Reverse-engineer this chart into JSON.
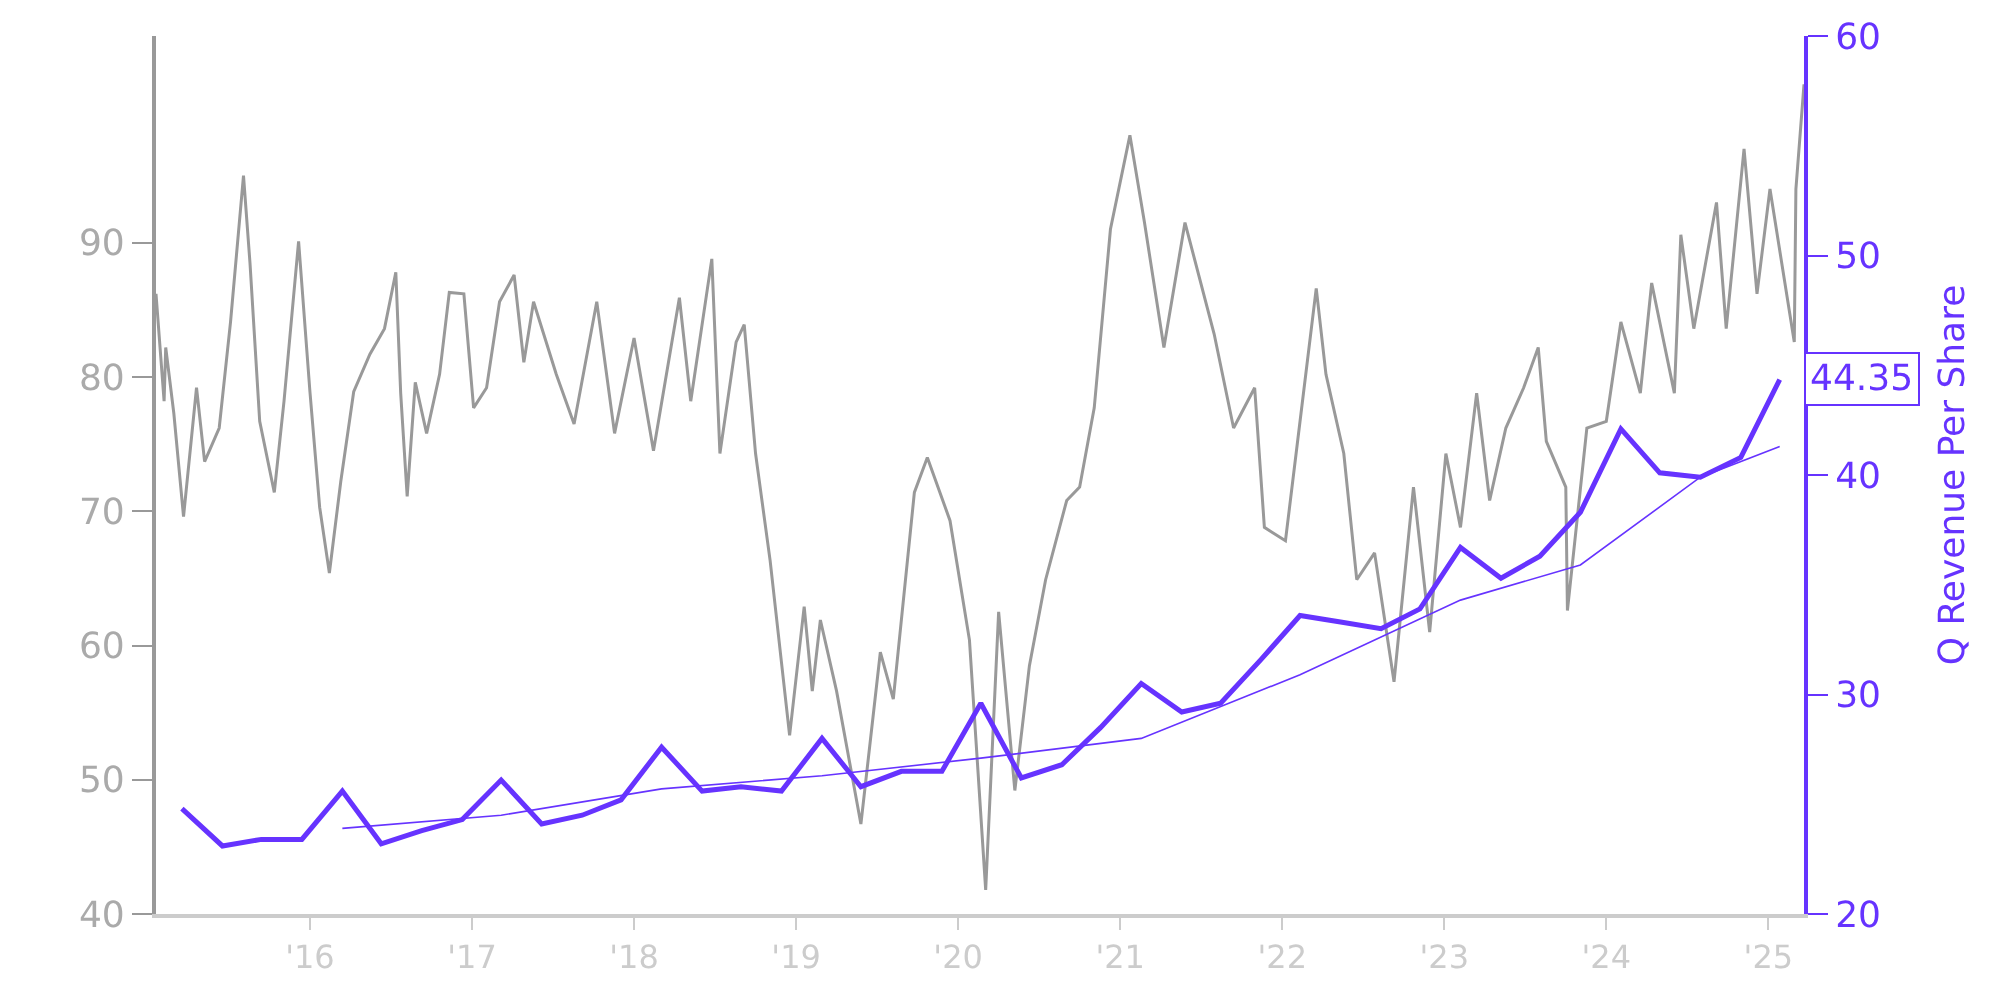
{
  "chart_data": {
    "type": "line",
    "y2label": "Q Revenue Per Share",
    "xlim": [
      2015.05,
      2025.22
    ],
    "xticks": [
      {
        "value": 2016,
        "label": "'16"
      },
      {
        "value": 2017,
        "label": "'17"
      },
      {
        "value": 2018,
        "label": "'18"
      },
      {
        "value": 2019,
        "label": "'19"
      },
      {
        "value": 2020,
        "label": "'20"
      },
      {
        "value": 2021,
        "label": "'21"
      },
      {
        "value": 2022,
        "label": "'22"
      },
      {
        "value": 2023,
        "label": "'23"
      },
      {
        "value": 2024,
        "label": "'24"
      },
      {
        "value": 2025,
        "label": "'25"
      }
    ],
    "ylim": [
      40,
      105.4
    ],
    "yticks": [
      40,
      50,
      60,
      70,
      80,
      90
    ],
    "y2lim": [
      20,
      60
    ],
    "y2ticks": [
      20,
      30,
      40,
      50,
      60
    ],
    "marker": "none",
    "series": [
      {
        "color": "#999999",
        "x": [
          2015.05,
          2015.1,
          2015.11,
          2015.16,
          2015.22,
          2015.3,
          2015.35,
          2015.44,
          2015.51,
          2015.59,
          2015.63,
          2015.69,
          2015.78,
          2015.84,
          2015.93,
          2016.0,
          2016.06,
          2016.12,
          2016.19,
          2016.27,
          2016.37,
          2016.46,
          2016.53,
          2016.56,
          2016.6,
          2016.65,
          2016.72,
          2016.8,
          2016.86,
          2016.95,
          2017.01,
          2017.09,
          2017.17,
          2017.26,
          2017.32,
          2017.38,
          2017.52,
          2017.63,
          2017.77,
          2017.88,
          2018.0,
          2018.12,
          2018.28,
          2018.35,
          2018.48,
          2018.53,
          2018.63,
          2018.68,
          2018.75,
          2018.84,
          2018.96,
          2019.05,
          2019.1,
          2019.15,
          2019.25,
          2019.4,
          2019.52,
          2019.6,
          2019.73,
          2019.81,
          2019.95,
          2020.07,
          2020.17,
          2020.25,
          2020.35,
          2020.44,
          2020.54,
          2020.67,
          2020.75,
          2020.84,
          2020.94,
          2021.06,
          2021.15,
          2021.27,
          2021.4,
          2021.58,
          2021.7,
          2021.83,
          2021.89,
          2022.02,
          2022.11,
          2022.21,
          2022.27,
          2022.38,
          2022.46,
          2022.57,
          2022.69,
          2022.81,
          2022.91,
          2023.01,
          2023.1,
          2023.2,
          2023.28,
          2023.38,
          2023.49,
          2023.58,
          2023.63,
          2023.75,
          2023.76,
          2023.88,
          2024.0,
          2024.09,
          2024.21,
          2024.28,
          2024.42,
          2024.46,
          2024.54,
          2024.68,
          2024.74,
          2024.85,
          2024.93,
          2025.01,
          2025.16,
          2025.17,
          2025.22
        ],
        "values": [
          86.2,
          78.2,
          82.2,
          77.3,
          69.6,
          79.2,
          73.7,
          76.2,
          84.1,
          95.0,
          88.5,
          76.7,
          71.4,
          78.2,
          90.1,
          78.9,
          70.3,
          65.4,
          72.2,
          78.9,
          81.7,
          83.6,
          87.8,
          78.8,
          71.1,
          79.6,
          75.8,
          80.2,
          86.3,
          86.2,
          77.7,
          79.2,
          85.6,
          87.6,
          81.1,
          85.6,
          80.2,
          76.5,
          85.6,
          75.8,
          82.9,
          74.5,
          85.9,
          78.2,
          88.8,
          74.3,
          82.6,
          83.9,
          74.3,
          66.3,
          53.3,
          62.9,
          56.6,
          61.9,
          56.6,
          46.7,
          59.5,
          56.0,
          71.4,
          74.0,
          69.3,
          60.4,
          41.8,
          62.5,
          49.2,
          58.5,
          64.9,
          70.8,
          71.8,
          77.7,
          91.0,
          98.0,
          91.5,
          82.2,
          91.5,
          83.2,
          76.2,
          79.2,
          68.8,
          67.8,
          76.7,
          86.6,
          80.2,
          74.3,
          64.9,
          66.9,
          57.3,
          71.8,
          61.0,
          74.3,
          68.8,
          78.8,
          70.8,
          76.2,
          79.2,
          82.2,
          75.2,
          71.8,
          62.6,
          76.2,
          76.7,
          84.1,
          78.8,
          87.0,
          78.8,
          90.6,
          83.6,
          93.0,
          83.6,
          97.0,
          86.2,
          94.0,
          82.6,
          94.0,
          101.8
        ]
      },
      {
        "color": "#6633ff",
        "axis": "y2",
        "x": [
          2015.21,
          2015.46,
          2015.7,
          2015.95,
          2016.2,
          2016.44,
          2016.69,
          2016.94,
          2017.18,
          2017.43,
          2017.68,
          2017.92,
          2018.17,
          2018.42,
          2018.66,
          2018.91,
          2019.16,
          2019.4,
          2019.65,
          2019.9,
          2020.14,
          2020.39,
          2020.64,
          2020.88,
          2021.13,
          2021.38,
          2021.62,
          2021.87,
          2022.11,
          2022.36,
          2022.61,
          2022.85,
          2023.1,
          2023.35,
          2023.59,
          2023.84,
          2024.09,
          2024.33,
          2024.58,
          2024.83,
          2025.07
        ],
        "values": [
          24.8,
          23.1,
          23.4,
          23.4,
          25.6,
          23.2,
          23.8,
          24.3,
          26.1,
          24.1,
          24.5,
          25.2,
          27.6,
          25.6,
          25.8,
          25.6,
          28.0,
          25.8,
          26.5,
          26.5,
          29.6,
          26.2,
          26.8,
          28.5,
          30.5,
          29.2,
          29.6,
          31.6,
          33.6,
          33.3,
          33.0,
          33.9,
          36.7,
          35.3,
          36.3,
          38.3,
          42.1,
          40.1,
          39.9,
          40.8,
          44.35
        ],
        "value_labels": [
          null,
          null,
          null,
          null,
          null,
          null,
          null,
          null,
          null,
          null,
          null,
          null,
          null,
          null,
          null,
          null,
          null,
          null,
          null,
          null,
          null,
          null,
          null,
          null,
          null,
          null,
          null,
          null,
          null,
          null,
          null,
          null,
          null,
          null,
          null,
          null,
          null,
          null,
          null,
          null,
          "44.35"
        ]
      },
      {
        "color": "#6633ff",
        "axis": "y2",
        "x": [
          2016.2,
          2017.18,
          2018.17,
          2019.16,
          2020.14,
          2021.13,
          2022.11,
          2023.1,
          2023.84,
          2024.58,
          2025.07
        ],
        "values": [
          23.9,
          24.5,
          25.7,
          26.3,
          27.1,
          28.0,
          30.9,
          34.3,
          35.9,
          39.9,
          41.3
        ]
      }
    ]
  }
}
